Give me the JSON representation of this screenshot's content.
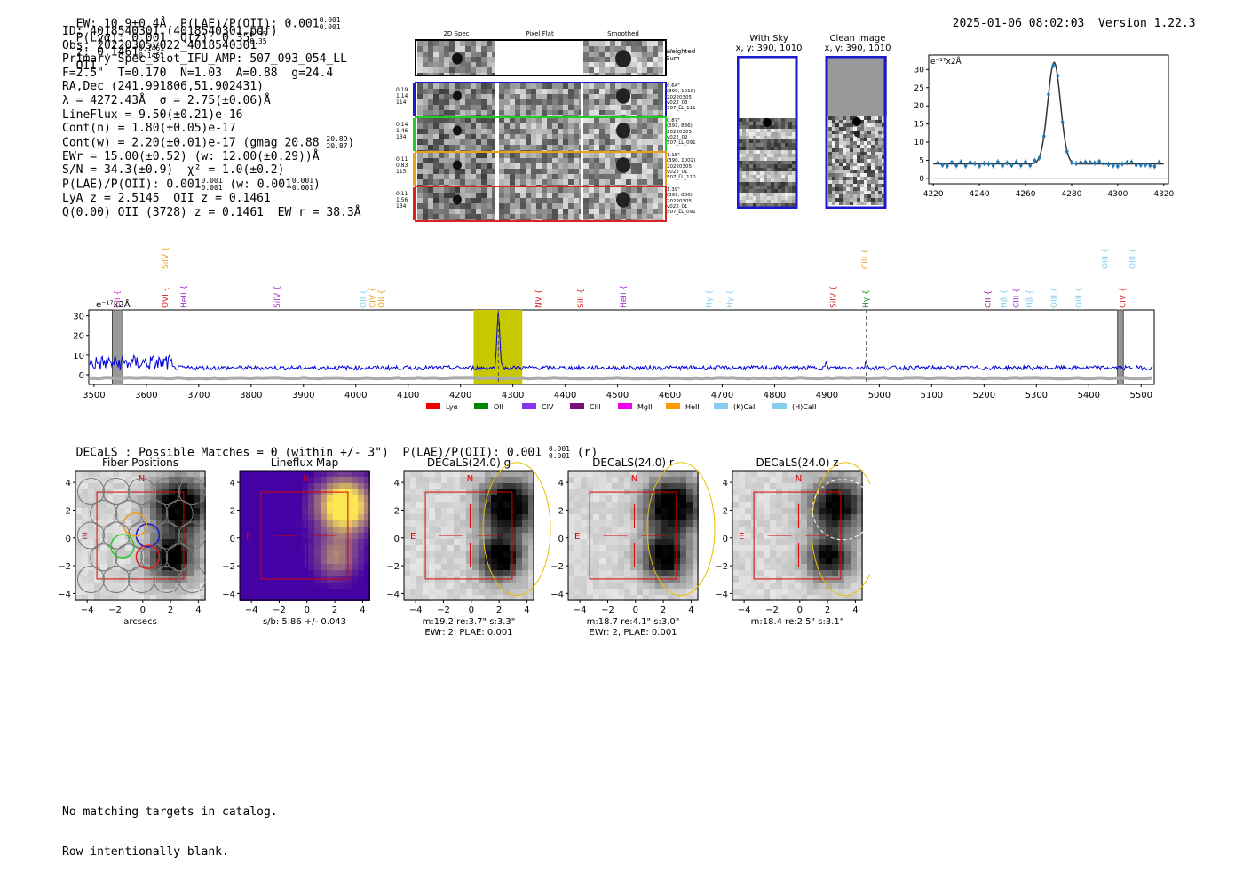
{
  "header": {
    "ew_text": "EW: 10.9±0.4Å  P(LAE)/P(OII): 0.001",
    "ew_sup_hi": "0.001",
    "ew_sup_lo": "0.001",
    "plya_text": "P(Lyα): 0.001  Q(z): 0.35",
    "qz_sup_hi": "0.35",
    "qz_sup_lo": "0.35",
    "z_text": "z: 0.1461",
    "z_sup_hi": "0.1461",
    "z_sup_lo": "0.1461",
    "z_type": "OII",
    "timestamp": "2025-01-06 08:02:03",
    "version": "Version 1.22.3"
  },
  "info": {
    "id": "ID: 4018540301 (4018540301.pdf)",
    "obs": "Obs: 20220305v022_4018540301",
    "primary": "Primary Spec_Slot_IFU_AMP: 507_093_054_LL",
    "fit": "F=2.5\"  T=0.170  N=1.03  A=0.88  g=24.4",
    "radec": "RA,Dec (241.991806,51.902431)",
    "lambda": "λ = 4272.43Å  σ = 2.75(±0.06)Å",
    "lineflux": "LineFlux = 9.50(±0.21)e-16",
    "contn": "Cont(n) = 1.80(±0.05)e-17",
    "contw": "Cont(w) = 2.20(±0.01)e-17 (gmag 20.88",
    "contw_sup_hi": "20.89",
    "contw_sup_lo": "20.87",
    "contw_end": ")",
    "ewr": "EWr = 15.00(±0.52) (w: 12.00(±0.29))Å",
    "sn": "S/N = 34.3(±0.9)  χ² = 1.0(±0.2)",
    "plae": "P(LAE)/P(OII): 0.001",
    "plae_sup_hi": "0.001",
    "plae_sup_lo": "0.001",
    "plae_w": "(w: 0.001",
    "plae_w_sup_hi": "0.001",
    "plae_w_sup_lo": "0.001",
    "plae_end": ")",
    "lya": "LyA z = 2.5145  OII z = 0.1461",
    "q": "Q(0.00) OII (3728) z = 0.1461  EW r = 38.3Å"
  },
  "cutouts": {
    "col_2d": "2D Spec",
    "col_flat": "Pixel Flat",
    "col_smooth": "Smoothed",
    "weighted": "Weighted\nSum",
    "rows": [
      {
        "l1": "0.19",
        "l2": "1.14",
        "l3": "114",
        "r1": "0.64\"",
        "r2": "(390, 1010)",
        "r3": "20220305",
        "r4": "v022_03",
        "r5": "507_LL_111",
        "color": "#1a1acc"
      },
      {
        "l1": "0.14",
        "l2": "1.46",
        "l3": "134",
        "r1": "0.87\"",
        "r2": "(391, 836)",
        "r3": "20220305",
        "r4": "v022_02",
        "r5": "507_LL_091",
        "color": "#22cc22"
      },
      {
        "l1": "0.11",
        "l2": "0.83",
        "l3": "115",
        "r1": "1.18\"",
        "r2": "(390, 1002)",
        "r3": "20220305",
        "r4": "v022_01",
        "r5": "507_LL_110",
        "color": "#e8a020"
      },
      {
        "l1": "0.11",
        "l2": "1.56",
        "l3": "134",
        "r1": "1.39\"",
        "r2": "(391, 836)",
        "r3": "20220305",
        "r4": "v022_01",
        "r5": "507_LL_091",
        "color": "#dd2222"
      }
    ]
  },
  "sky": {
    "with_sky_title": "With Sky",
    "with_sky_xy": "x, y: 390, 1010",
    "clean_title": "Clean Image",
    "clean_xy": "x, y: 390, 1010"
  },
  "zoom_plot": {
    "units": "e⁻¹⁷x2Å",
    "xticks": [
      "4220",
      "4240",
      "4260",
      "4280",
      "4300",
      "4320"
    ],
    "yticks": [
      "0",
      "5",
      "10",
      "15",
      "20",
      "25",
      "30"
    ]
  },
  "spectrum": {
    "units": "e⁻¹⁷x2Å",
    "yticks": [
      "0",
      "10",
      "20",
      "30"
    ],
    "xticks": [
      "3500",
      "3600",
      "3700",
      "3800",
      "3900",
      "4000",
      "4100",
      "4200",
      "4300",
      "4400",
      "4500",
      "4600",
      "4700",
      "4800",
      "4900",
      "5000",
      "5100",
      "5200",
      "5300",
      "5400",
      "5500"
    ],
    "lines": [
      {
        "name": "CII",
        "color": "#cc33cc",
        "x": 3545,
        "row": 2
      },
      {
        "name": "SiIV",
        "color": "#e8a020",
        "x": 3637,
        "row": 0
      },
      {
        "name": "OVI",
        "color": "#dd2222",
        "x": 3637,
        "row": 2
      },
      {
        "name": "HeII",
        "color": "#9933cc",
        "x": 3672,
        "row": 2
      },
      {
        "name": "SiIV",
        "color": "#aa33cc",
        "x": 3850,
        "row": 2
      },
      {
        "name": "OII",
        "color": "#88ccee",
        "x": 4015,
        "row": 2
      },
      {
        "name": "CIV",
        "color": "#e8a020",
        "x": 4033,
        "row": 2
      },
      {
        "name": "OII",
        "color": "#e8a020",
        "x": 4050,
        "row": 2
      },
      {
        "name": "NV",
        "color": "#dd2222",
        "x": 4350,
        "row": 2
      },
      {
        "name": "SiII",
        "color": "#dd2222",
        "x": 4430,
        "row": 2
      },
      {
        "name": "HeII",
        "color": "#9933cc",
        "x": 4512,
        "row": 2
      },
      {
        "name": "Hγ",
        "color": "#88ccee",
        "x": 4675,
        "row": 2
      },
      {
        "name": "Hγ",
        "color": "#88ccee",
        "x": 4715,
        "row": 2
      },
      {
        "name": "SiIV",
        "color": "#dd2222",
        "x": 4913,
        "row": 2
      },
      {
        "name": "CIII",
        "color": "#e8a020",
        "x": 4973,
        "row": 0
      },
      {
        "name": "Hγ",
        "color": "#228822",
        "x": 4975,
        "row": 2
      },
      {
        "name": "CII",
        "color": "#882288",
        "x": 5208,
        "row": 2
      },
      {
        "name": "Hβ",
        "color": "#88ccee",
        "x": 5238,
        "row": 2
      },
      {
        "name": "CIII",
        "color": "#9933cc",
        "x": 5262,
        "row": 2
      },
      {
        "name": "Hβ",
        "color": "#88ccee",
        "x": 5288,
        "row": 2
      },
      {
        "name": "OIII",
        "color": "#88ccee",
        "x": 5334,
        "row": 2
      },
      {
        "name": "OIII",
        "color": "#88ccee",
        "x": 5382,
        "row": 2
      },
      {
        "name": "OIII",
        "color": "#88ccee",
        "x": 5432,
        "row": 0
      },
      {
        "name": "OIII",
        "color": "#88ccee",
        "x": 5484,
        "row": 0
      },
      {
        "name": "CIV",
        "color": "#dd2222",
        "x": 5466,
        "row": 2
      }
    ],
    "legend": [
      {
        "label": "Lyα",
        "color": "#ee0000"
      },
      {
        "label": "OII",
        "color": "#008800"
      },
      {
        "label": "CIV",
        "color": "#8833ee"
      },
      {
        "label": "CIII",
        "color": "#771177"
      },
      {
        "label": "MgII",
        "color": "#ee00ee"
      },
      {
        "label": "HeII",
        "color": "#ff9900"
      },
      {
        "label": "(K)CaII",
        "color": "#88ccee"
      },
      {
        "label": "(H)CaII",
        "color": "#88ccee"
      }
    ]
  },
  "decals": {
    "heading": "DECaLS : Possible Matches = 0 (within +/- 3\")  P(LAE)/P(OII): 0.001",
    "heading_sup_hi": "0.001",
    "heading_sup_lo": "0.001",
    "heading_end": "(r)",
    "panels": [
      {
        "title": "Fiber Positions",
        "caption1": "arcsecs",
        "caption2": ""
      },
      {
        "title": "Lineflux Map",
        "caption1": "s/b: 5.86 +/- 0.043",
        "caption2": ""
      },
      {
        "title": "DECaLS(24.0) g",
        "caption1": "m:19.2  re:3.7\"  s:3.3\"",
        "caption2": "EWr: 2, PLAE: 0.001"
      },
      {
        "title": "DECaLS(24.0) r",
        "caption1": "m:18.7  re:4.1\"  s:3.0\"",
        "caption2": "EWr: 2, PLAE: 0.001"
      },
      {
        "title": "DECaLS(24.0) z",
        "caption1": "m:18.4  re:2.5\"  s:3.1\"",
        "caption2": ""
      }
    ],
    "ticks": [
      "−4",
      "−2",
      "0",
      "2",
      "4"
    ],
    "north": "N",
    "east": "E"
  },
  "footer": {
    "line1": "No matching targets in catalog.",
    "line2": "Row intentionally blank."
  }
}
